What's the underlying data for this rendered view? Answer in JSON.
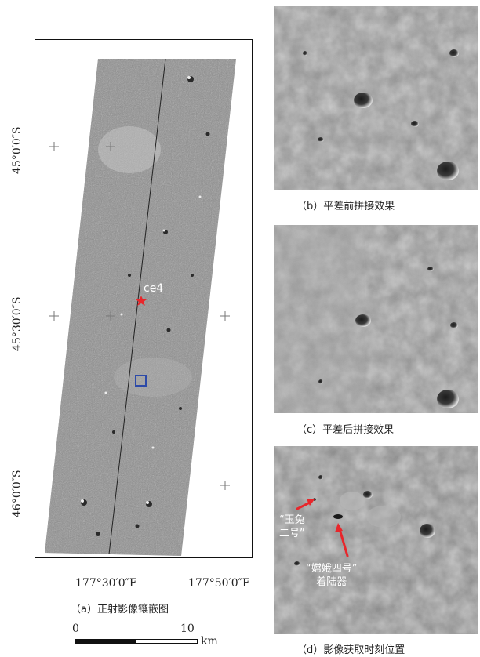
{
  "mosaic": {
    "lat_labels": [
      "45°0′0″S",
      "45°30′0″S",
      "46°0′0″S"
    ],
    "lon_labels": [
      "177°30′0″E",
      "177°50′0″E"
    ],
    "site_label": "ce4",
    "caption": "（a）正射影像镶嵌图",
    "scale": {
      "start": "0",
      "end": "10",
      "unit": "km"
    }
  },
  "panels": {
    "b_caption": "（b）平差前拼接效果",
    "c_caption": "（c）平差后拼接效果",
    "d_caption": "（d）影像获取时刻位置",
    "rover_label": [
      "“玉兔",
      "二号”"
    ],
    "lander_label": [
      "“嫦娥四号”",
      "着陆器"
    ]
  },
  "colors": {
    "marker_red": "#e8262b",
    "box_blue": "#2d4aa8",
    "frame": "#111111"
  }
}
